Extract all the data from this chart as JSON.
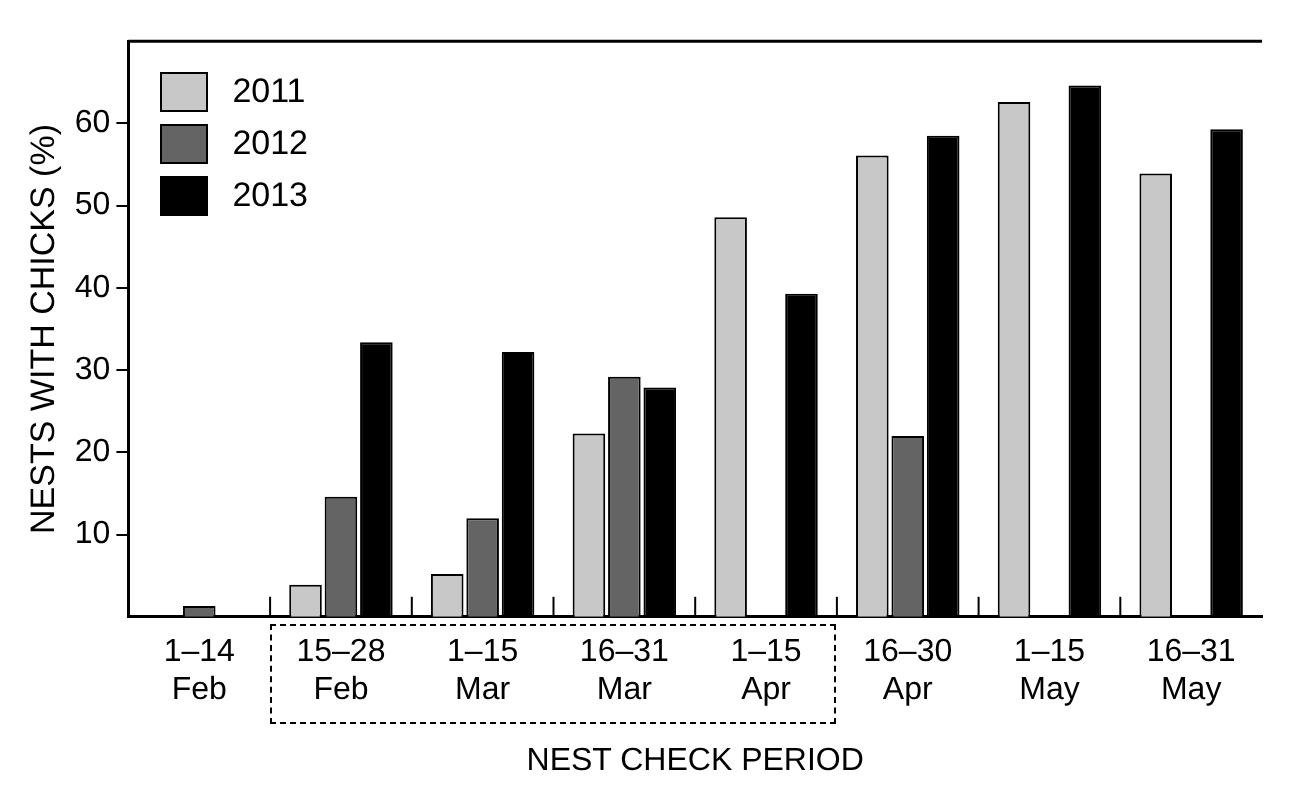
{
  "chart_data": {
    "type": "bar",
    "xlabel": "NEST CHECK PERIOD",
    "ylabel": "NESTS WITH CHICKS (%)",
    "categories": [
      "1–14 Feb",
      "15–28 Feb",
      "1–15 Mar",
      "16–31 Mar",
      "1–15 Apr",
      "16–30 Apr",
      "1–15 May",
      "16–31 May"
    ],
    "series": [
      {
        "name": "2011",
        "color": "#c8c8c8",
        "values": [
          0,
          3.9,
          5.2,
          22.3,
          48.6,
          56.1,
          62.6,
          53.9
        ]
      },
      {
        "name": "2012",
        "color": "#646464",
        "values": [
          1.3,
          14.6,
          12.0,
          29.2,
          0,
          22.0,
          0,
          0
        ]
      },
      {
        "name": "2013",
        "color": "#000000",
        "values": [
          0,
          33.4,
          32.2,
          27.9,
          39.3,
          58.5,
          64.6,
          59.3
        ]
      }
    ],
    "ylim": [
      0,
      70
    ],
    "yticks": [
      10,
      20,
      30,
      40,
      50,
      60
    ],
    "grid": false,
    "legend": "top left"
  }
}
